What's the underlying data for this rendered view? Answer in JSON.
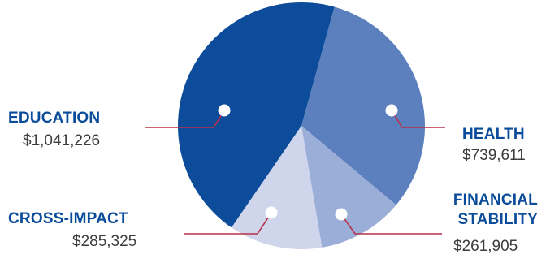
{
  "chart_data": {
    "type": "pie",
    "categories": [
      "EDUCATION",
      "HEALTH",
      "FINANCIAL STABILITY",
      "CROSS-IMPACT"
    ],
    "values": [
      1041226,
      739611,
      261905,
      285325
    ],
    "value_labels": [
      "$1,041,226",
      "$739,611",
      "$261,905",
      "$285,325"
    ],
    "colors": [
      "#0d4c9a",
      "#5c7fbd",
      "#9aaed8",
      "#cfd6ec"
    ],
    "leader_color": "#b8324a",
    "title": "",
    "legend": "none"
  }
}
